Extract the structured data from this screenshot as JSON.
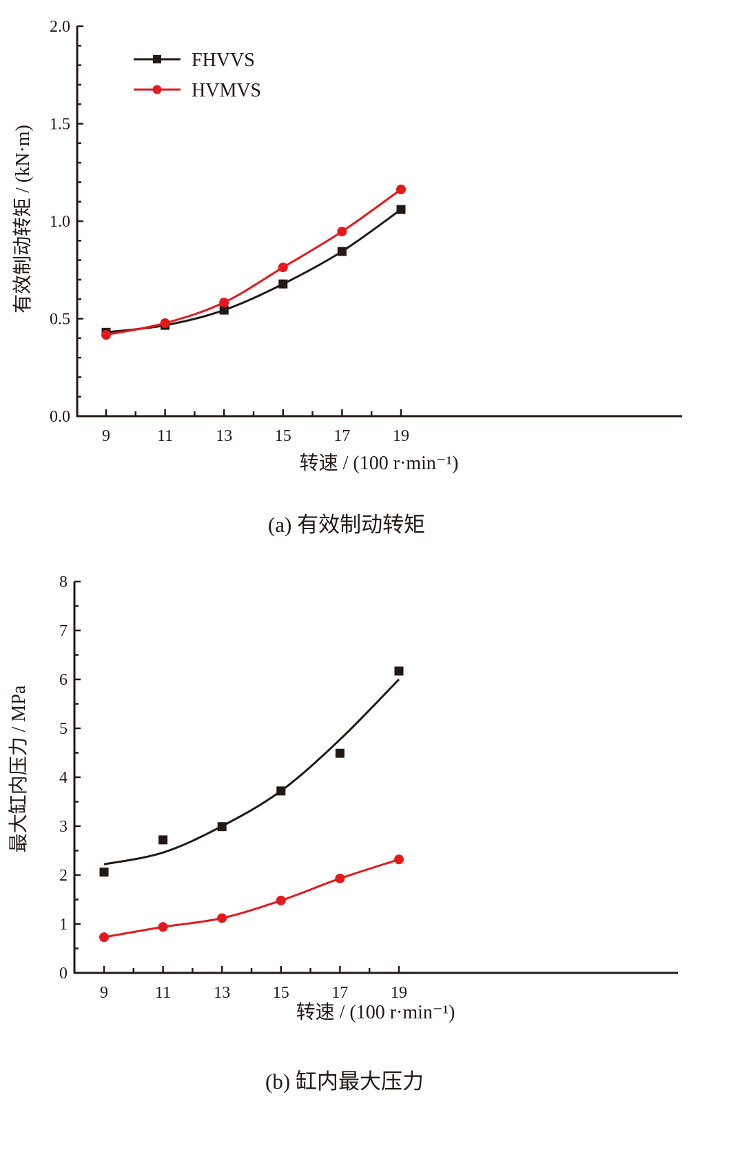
{
  "colors": {
    "FHVVS": "#231815",
    "HVMVS": "#e3191c",
    "axis": "#231815"
  },
  "chart_data": [
    {
      "type": "line",
      "caption": "(a)  有效制动转矩",
      "xlabel": "转速 / (100 r·min⁻¹)",
      "ylabel": "有效制动转矩 / (kN·m)",
      "x": [
        9,
        11,
        13,
        15,
        17,
        19
      ],
      "xticks": [
        "9",
        "11",
        "13",
        "15",
        "17",
        "19"
      ],
      "xlim": [
        8,
        20
      ],
      "ylim": [
        0,
        2.0
      ],
      "yticks": [
        "0.0",
        "0.5",
        "1.0",
        "1.5",
        "2.0"
      ],
      "legend": {
        "position": "top-left",
        "entries": [
          "FHVVS",
          "HVMVS"
        ]
      },
      "series": [
        {
          "name": "FHVVS",
          "marker": "square",
          "values": [
            0.43,
            0.466,
            0.544,
            0.678,
            0.845,
            1.06
          ]
        },
        {
          "name": "HVMVS",
          "marker": "circle",
          "values": [
            0.417,
            0.477,
            0.583,
            0.763,
            0.947,
            1.163
          ]
        }
      ]
    },
    {
      "type": "scatter",
      "caption": "(b)  缸内最大压力",
      "xlabel": "转速 / (100 r·min⁻¹)",
      "ylabel": "最大缸内压力 / MPa",
      "x": [
        9,
        11,
        13,
        15,
        17,
        19
      ],
      "xticks": [
        "9",
        "11",
        "13",
        "15",
        "17",
        "19"
      ],
      "xlim": [
        8,
        20
      ],
      "ylim": [
        0,
        8
      ],
      "yticks": [
        "0",
        "1",
        "2",
        "3",
        "4",
        "5",
        "6",
        "7",
        "8"
      ],
      "series": [
        {
          "name": "FHVVS",
          "marker": "square",
          "values": [
            2.06,
            2.72,
            2.99,
            3.72,
            4.49,
            6.17
          ],
          "fit": [
            2.22,
            2.46,
            3.0,
            3.72,
            4.77,
            6.0
          ]
        },
        {
          "name": "HVMVS",
          "marker": "circle",
          "values": [
            0.73,
            0.94,
            1.12,
            1.48,
            1.93,
            2.32
          ],
          "fit": [
            0.73,
            0.94,
            1.12,
            1.48,
            1.93,
            2.32
          ]
        }
      ]
    }
  ]
}
